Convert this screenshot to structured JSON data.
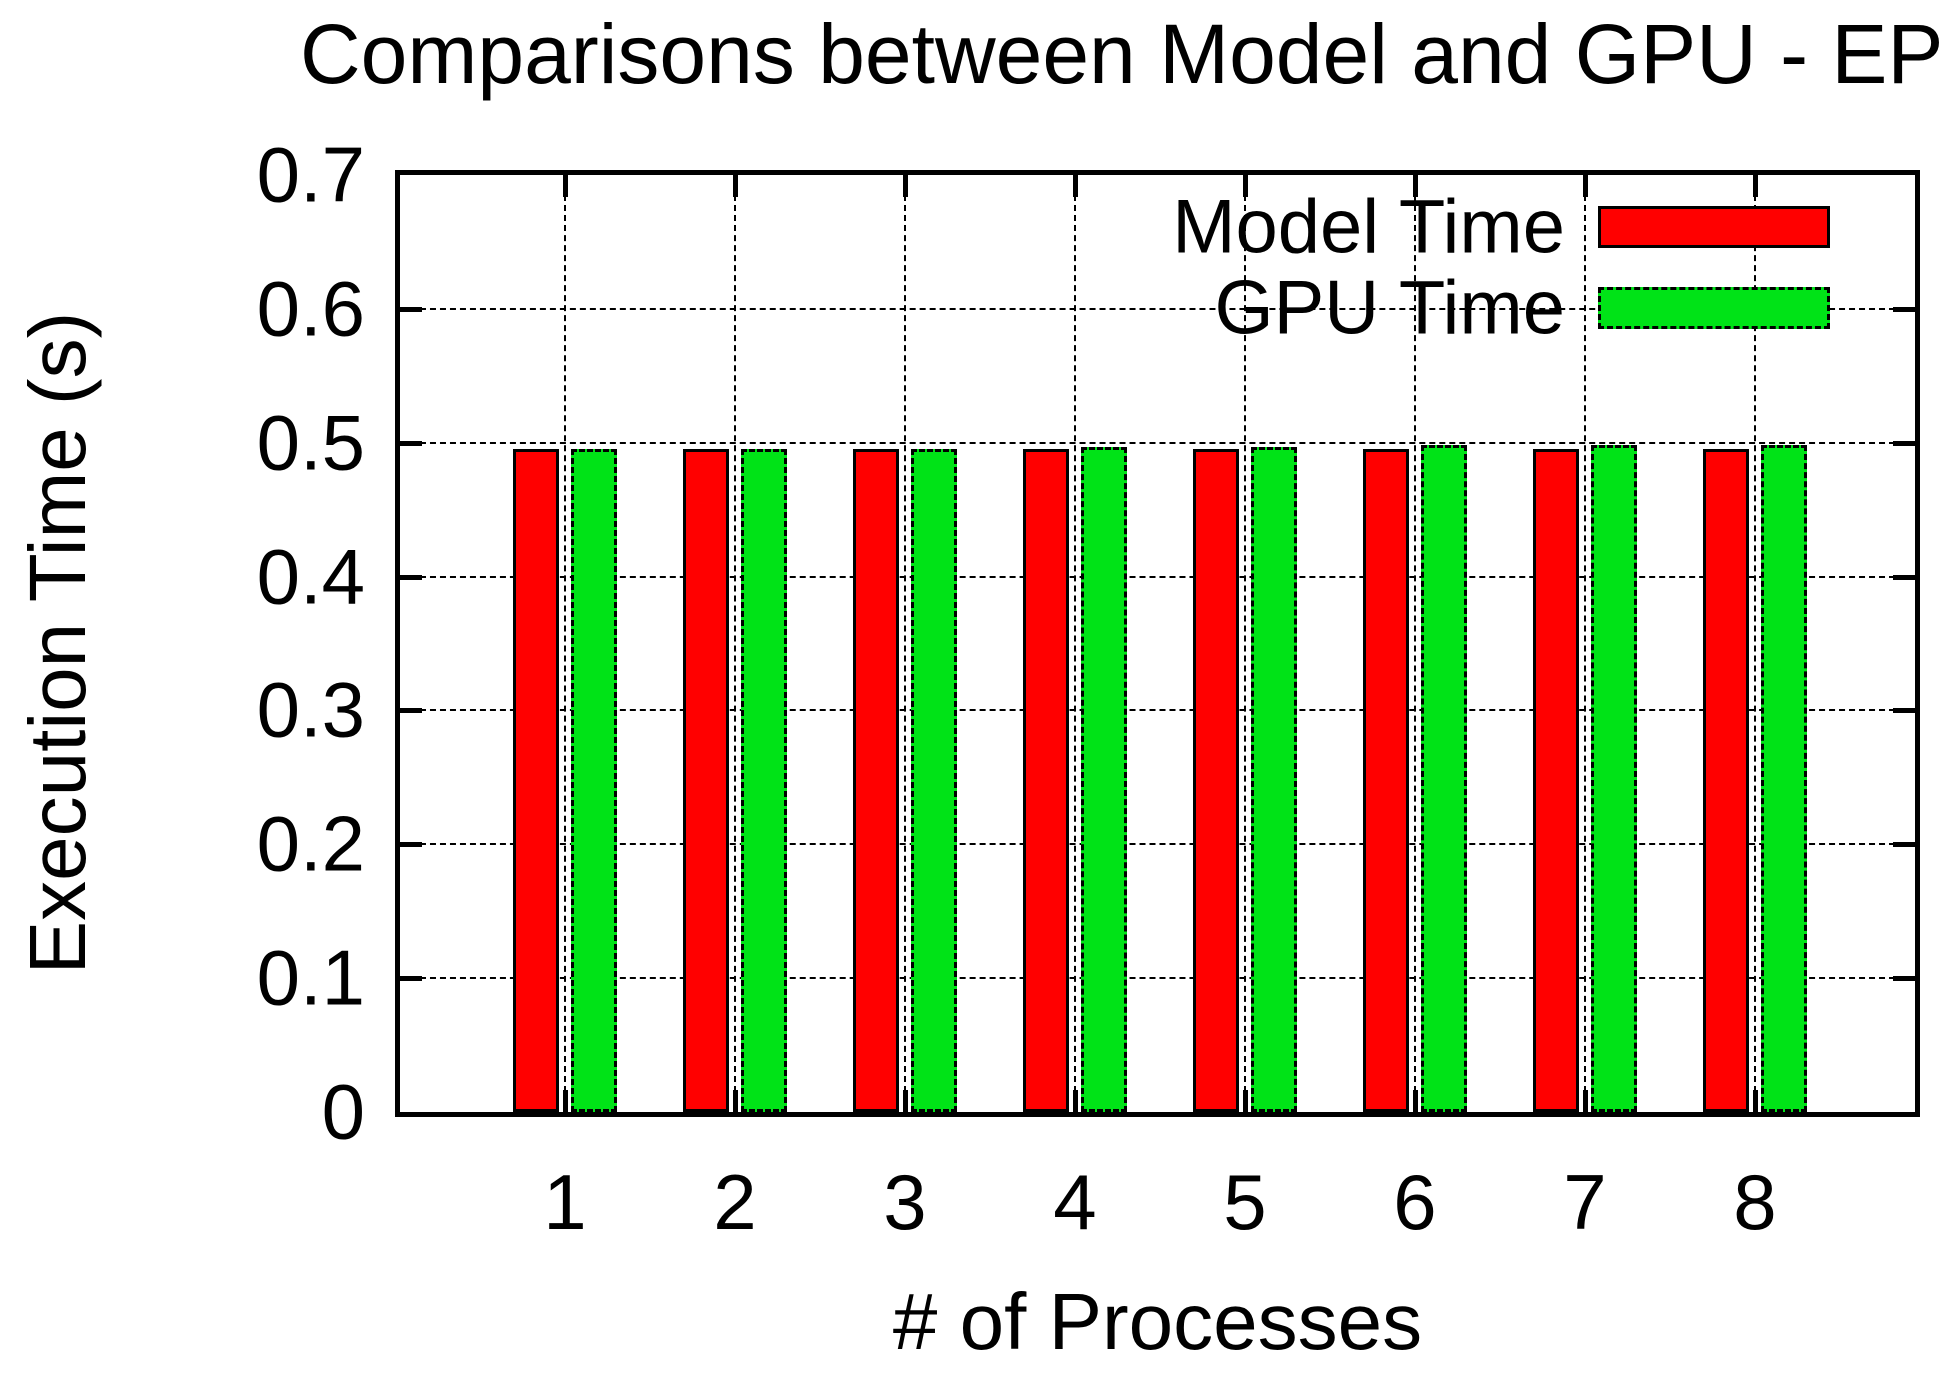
{
  "title": "Comparisons between Model and GPU - EP",
  "axes": {
    "x_label": "# of Processes",
    "y_label": "Execution Time (s)",
    "x_tick_labels": [
      "1",
      "2",
      "3",
      "4",
      "5",
      "6",
      "7",
      "8"
    ],
    "y_tick_labels": [
      "0",
      "0.1",
      "0.2",
      "0.3",
      "0.4",
      "0.5",
      "0.6",
      "0.7"
    ]
  },
  "legend": {
    "position": "top-right-inside",
    "entries": [
      {
        "label": "Model Time",
        "color": "#ff0000",
        "border_style": "solid"
      },
      {
        "label": "GPU Time",
        "color": "#00e317",
        "border_style": "dashed"
      }
    ]
  },
  "chart_data": {
    "type": "bar",
    "title": "Comparisons between Model and GPU - EP",
    "xlabel": "# of Processes",
    "ylabel": "Execution Time (s)",
    "categories": [
      "1",
      "2",
      "3",
      "4",
      "5",
      "6",
      "7",
      "8"
    ],
    "series": [
      {
        "name": "Model Time",
        "color": "#ff0000",
        "border_style": "solid",
        "values": [
          0.495,
          0.495,
          0.495,
          0.495,
          0.495,
          0.495,
          0.495,
          0.495
        ]
      },
      {
        "name": "GPU Time",
        "color": "#00e317",
        "border_style": "dashed",
        "values": [
          0.495,
          0.495,
          0.495,
          0.497,
          0.497,
          0.498,
          0.498,
          0.498
        ]
      }
    ],
    "ylim": [
      0,
      0.7
    ],
    "ytick_step": 0.1,
    "grid": "dashed both axes",
    "legend_position": "top right inside, no box",
    "background": "#ffffff"
  }
}
